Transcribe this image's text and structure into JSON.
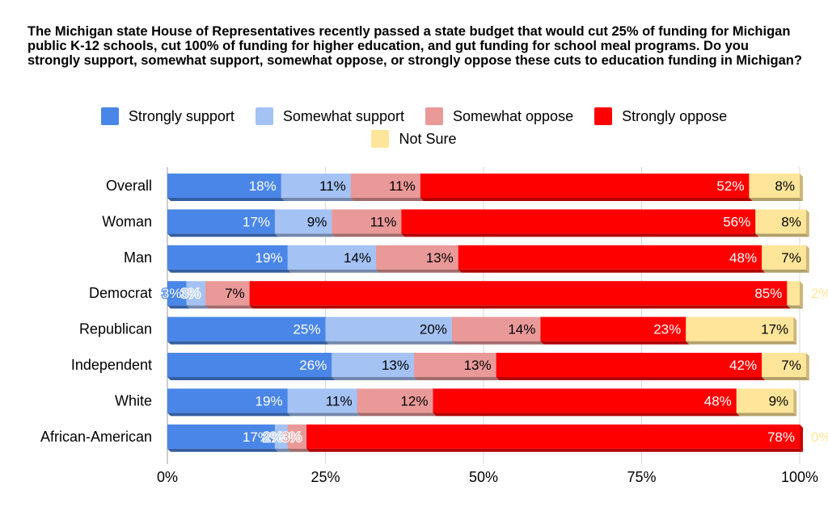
{
  "title": "The Michigan state House of Representatives recently passed a state budget that would cut 25% of funding for Michigan public K-12 schools, cut 100% of funding for higher education, and gut funding for school meal programs. Do you strongly support, somewhat support, somewhat oppose, or strongly oppose these cuts to education funding in Michigan?",
  "colors": {
    "strongly_support": "#4a86e8",
    "somewhat_support": "#a4c2f4",
    "somewhat_oppose": "#ea9999",
    "strongly_oppose": "#ff0000",
    "not_sure": "#ffe599"
  },
  "chart_data": {
    "type": "bar",
    "orientation": "horizontal",
    "stacked": true,
    "title": "The Michigan state House of Representatives recently passed a state budget that would cut 25% of funding for Michigan public K-12 schools, cut 100% of funding for higher education, and gut funding for school meal programs. Do you strongly support, somewhat support, somewhat oppose, or strongly oppose these cuts to education funding in Michigan?",
    "categories": [
      "Overall",
      "Woman",
      "Man",
      "Democrat",
      "Republican",
      "Independent",
      "White",
      "African-American"
    ],
    "series": [
      {
        "name": "Strongly support",
        "color": "#4a86e8",
        "label_color": "#ffffff",
        "values": [
          18,
          17,
          19,
          3,
          25,
          26,
          19,
          17
        ]
      },
      {
        "name": "Somewhat support",
        "color": "#a4c2f4",
        "label_color": "#000000",
        "values": [
          11,
          9,
          14,
          3,
          20,
          13,
          11,
          2
        ]
      },
      {
        "name": "Somewhat oppose",
        "color": "#ea9999",
        "label_color": "#000000",
        "values": [
          11,
          11,
          13,
          7,
          14,
          13,
          12,
          3
        ]
      },
      {
        "name": "Strongly oppose",
        "color": "#ff0000",
        "label_color": "#ffffff",
        "values": [
          52,
          56,
          48,
          85,
          23,
          42,
          48,
          78
        ]
      },
      {
        "name": "Not Sure",
        "color": "#ffe599",
        "label_color": "#000000",
        "values": [
          8,
          8,
          7,
          2,
          17,
          7,
          9,
          0
        ]
      }
    ],
    "xlim": [
      0,
      100
    ],
    "x_ticks": [
      "0%",
      "25%",
      "50%",
      "75%",
      "100%"
    ],
    "legend_position": "top",
    "grid": true
  }
}
